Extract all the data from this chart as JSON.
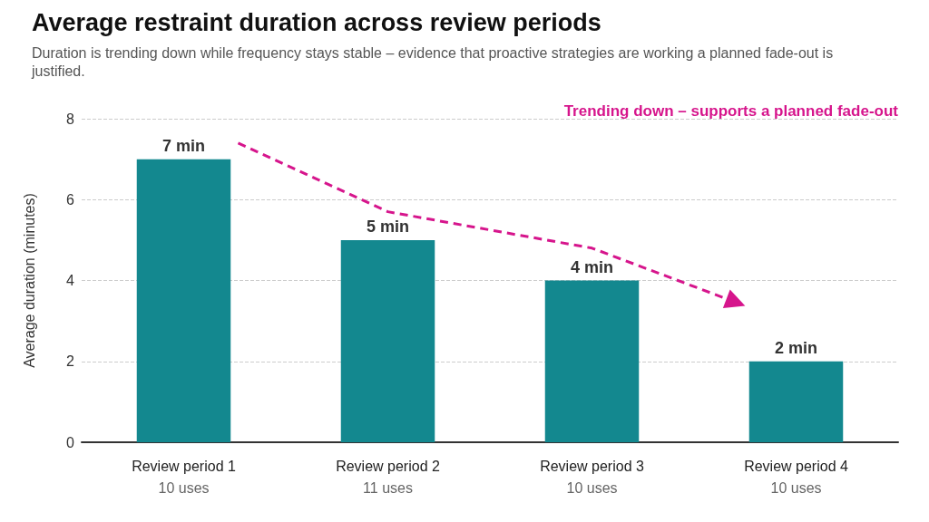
{
  "chart_data": {
    "type": "bar",
    "title": "Average restraint duration across review periods",
    "subtitle": "Duration is trending down while frequency stays stable – evidence that proactive strategies are working a planned fade-out is justified.",
    "ylabel": "Average duration (minutes)",
    "categories": [
      "Review period 1\n10 uses",
      "Review period 2\n11 uses",
      "Review period 3\n10 uses",
      "Review period 4\n10 uses"
    ],
    "values": [
      7,
      5,
      4,
      2
    ],
    "value_labels": [
      "7 min",
      "5 min",
      "4 min",
      "2 min"
    ],
    "color": "#13888f",
    "ylim": [
      0,
      8
    ],
    "yticks": [
      0,
      2,
      4,
      6,
      8
    ],
    "grid": "y",
    "annotations": [
      "Trending down – supports a planned fade-out"
    ]
  }
}
